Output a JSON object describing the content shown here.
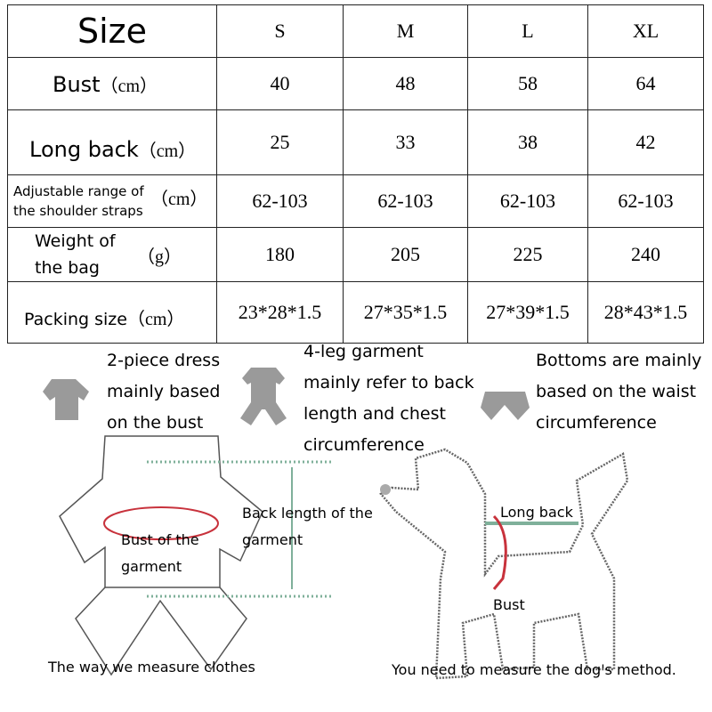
{
  "table": {
    "header": {
      "label": "Size",
      "sizes": [
        "S",
        "M",
        "L",
        "XL"
      ]
    },
    "rows": [
      {
        "label": "Bust",
        "unit": "（cm）",
        "values": [
          "40",
          "48",
          "58",
          "64"
        ]
      },
      {
        "label": "Long back",
        "unit": "（cm）",
        "values": [
          "25",
          "33",
          "38",
          "42"
        ]
      },
      {
        "label_line1": "Adjustable range of",
        "label_line2": "the shoulder straps",
        "unit": "（cm）",
        "values": [
          "62-103",
          "62-103",
          "62-103",
          "62-103"
        ]
      },
      {
        "label_line1": "Weight of",
        "label_line2": "the bag",
        "unit": "（g）",
        "values": [
          "180",
          "205",
          "225",
          "240"
        ]
      },
      {
        "label": "Packing size",
        "unit": "（cm）",
        "values": [
          "23*28*1.5",
          "27*35*1.5",
          "27*39*1.5",
          "28*43*1.5"
        ]
      }
    ]
  },
  "notes": [
    {
      "lines": [
        "2-piece dress",
        "mainly based",
        "on the bust"
      ]
    },
    {
      "lines": [
        "4-leg garment",
        "mainly refer to back",
        "length and chest",
        "circumference"
      ]
    },
    {
      "lines": [
        "Bottoms are mainly",
        "based on the waist",
        "circumference"
      ]
    }
  ],
  "clothes_diagram": {
    "back_length_line1": "Back length of the",
    "back_length_line2": "garment",
    "bust_line1": "Bust of the",
    "bust_line2": "garment",
    "caption": "The way we measure clothes"
  },
  "dog_diagram": {
    "long_back": "Long back",
    "bust": "Bust",
    "caption": "You need to measure the dog's method."
  },
  "colors": {
    "measure_red": "#c8323c",
    "measure_green": "#7fb09a",
    "icon_gray": "#9a9a9a"
  }
}
